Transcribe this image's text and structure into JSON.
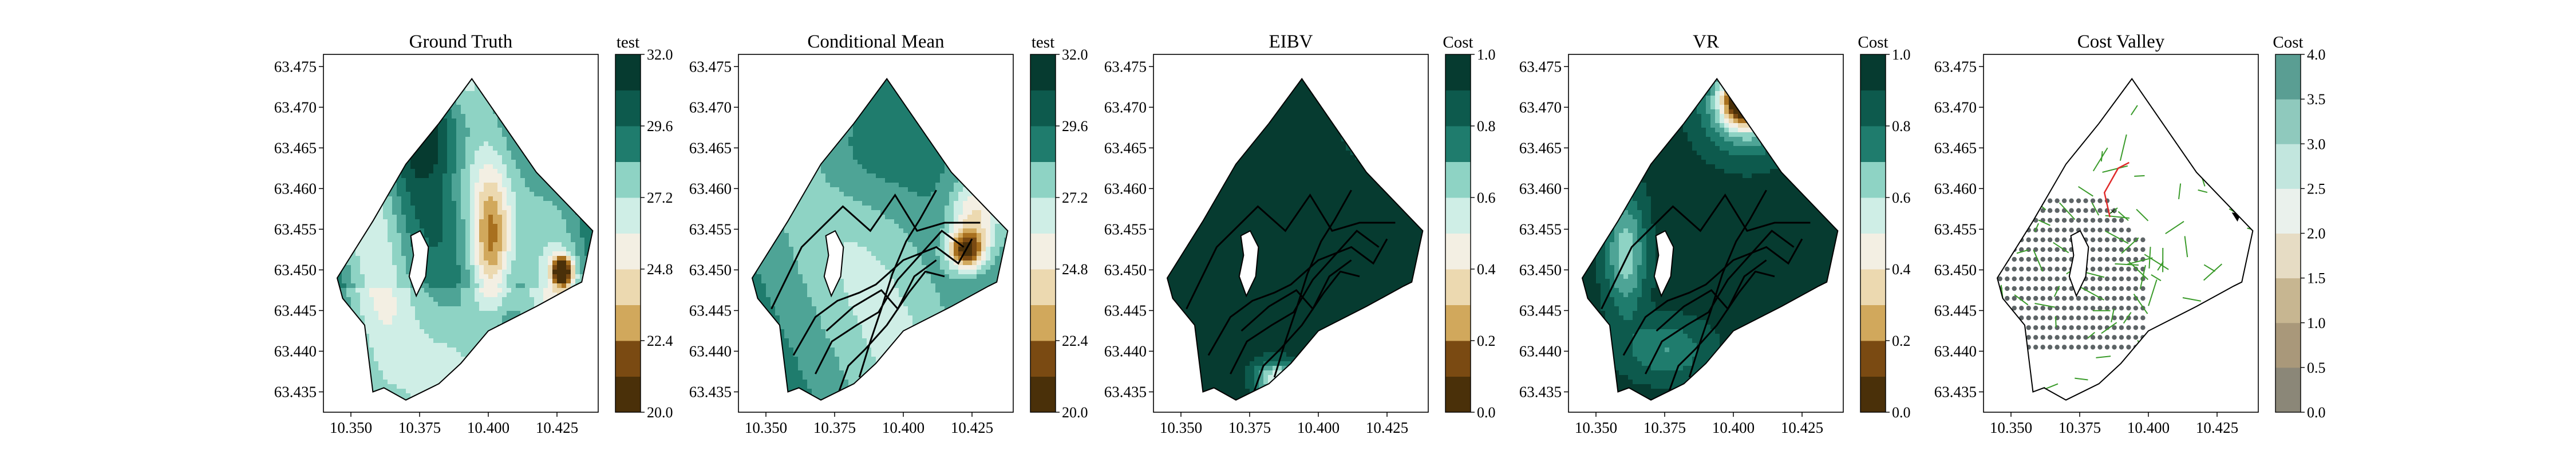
{
  "chart_data": [
    {
      "type": "heatmap",
      "title": "Ground Truth",
      "xticks": [
        "10.350",
        "10.375",
        "10.400",
        "10.425"
      ],
      "yticks": [
        "63.475",
        "63.470",
        "63.465",
        "63.460",
        "63.455",
        "63.450",
        "63.445",
        "63.440",
        "63.435"
      ],
      "xlim": [
        10.34,
        10.44
      ],
      "ylim": [
        63.4325,
        63.4765
      ],
      "colorbar": {
        "label": "test",
        "ticks": [
          "32.0",
          "29.6",
          "27.2",
          "24.8",
          "22.4",
          "20.0"
        ],
        "range": [
          20.0,
          32.0
        ]
      },
      "overlay": "none"
    },
    {
      "type": "heatmap",
      "title": "Conditional Mean",
      "xticks": [
        "10.350",
        "10.375",
        "10.400",
        "10.425"
      ],
      "yticks": [
        "63.475",
        "63.470",
        "63.465",
        "63.460",
        "63.455",
        "63.450",
        "63.445",
        "63.440",
        "63.435"
      ],
      "xlim": [
        10.34,
        10.44
      ],
      "ylim": [
        63.4325,
        63.4765
      ],
      "colorbar": {
        "label": "test",
        "ticks": [
          "32.0",
          "29.6",
          "27.2",
          "24.8",
          "22.4",
          "20.0"
        ],
        "range": [
          20.0,
          32.0
        ]
      },
      "overlay": "trajectory"
    },
    {
      "type": "heatmap",
      "title": "EIBV",
      "xticks": [
        "10.350",
        "10.375",
        "10.400",
        "10.425"
      ],
      "yticks": [
        "63.475",
        "63.470",
        "63.465",
        "63.460",
        "63.455",
        "63.450",
        "63.445",
        "63.440",
        "63.435"
      ],
      "xlim": [
        10.34,
        10.44
      ],
      "ylim": [
        63.4325,
        63.4765
      ],
      "colorbar": {
        "label": "Cost",
        "ticks": [
          "1.0",
          "0.8",
          "0.6",
          "0.4",
          "0.2",
          "0.0"
        ],
        "range": [
          0.0,
          1.0
        ]
      },
      "overlay": "trajectory"
    },
    {
      "type": "heatmap",
      "title": "VR",
      "xticks": [
        "10.350",
        "10.375",
        "10.400",
        "10.425"
      ],
      "yticks": [
        "63.475",
        "63.470",
        "63.465",
        "63.460",
        "63.455",
        "63.450",
        "63.445",
        "63.440",
        "63.435"
      ],
      "xlim": [
        10.34,
        10.44
      ],
      "ylim": [
        63.4325,
        63.4765
      ],
      "colorbar": {
        "label": "Cost",
        "ticks": [
          "1.0",
          "0.8",
          "0.6",
          "0.4",
          "0.2",
          "0.0"
        ],
        "range": [
          0.0,
          1.0
        ]
      },
      "overlay": "trajectory"
    },
    {
      "type": "heatmap",
      "title": "Cost Valley",
      "xticks": [
        "10.350",
        "10.375",
        "10.400",
        "10.425"
      ],
      "yticks": [
        "63.475",
        "63.470",
        "63.465",
        "63.460",
        "63.455",
        "63.450",
        "63.445",
        "63.440",
        "63.435"
      ],
      "xlim": [
        10.34,
        10.44
      ],
      "ylim": [
        63.4325,
        63.4765
      ],
      "colorbar": {
        "label": "Cost",
        "ticks": [
          "4.0",
          "3.5",
          "3.0",
          "2.5",
          "2.0",
          "1.5",
          "1.0",
          "0.5",
          "0.0"
        ],
        "range": [
          0.0,
          4.0
        ]
      },
      "overlay": "rrt-tree"
    }
  ],
  "colors": {
    "palette": [
      "#4a3009",
      "#7a4a12",
      "#a8701f",
      "#d1a85c",
      "#ecd9b0",
      "#f3efe3",
      "#cfeee6",
      "#8ed3c4",
      "#4ea496",
      "#1f7c6d",
      "#0d5a4d",
      "#063b30"
    ],
    "trajectory": "#000000",
    "tree": "#3a9b2a",
    "path": "#e02a2a",
    "nodes": "#5d6466",
    "start": "#2222cc"
  }
}
